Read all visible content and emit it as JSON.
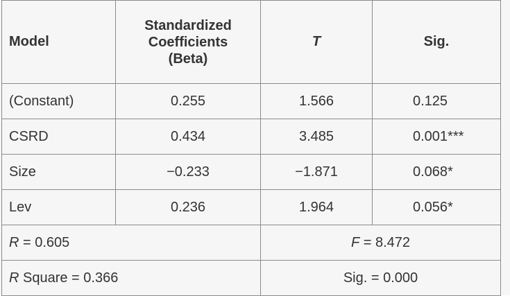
{
  "table": {
    "headers": [
      "Model",
      [
        "Standardized",
        "Coefficients",
        "(Beta)"
      ],
      "T",
      "Sig."
    ],
    "rows": [
      [
        "(Constant)",
        "0.255",
        "1.566",
        "0.125"
      ],
      [
        "CSRD",
        "0.434",
        "3.485",
        "0.001***"
      ],
      [
        "Size",
        "−0.233",
        "−1.871",
        "0.068*"
      ],
      [
        "Lev",
        "0.236",
        "1.964",
        "0.056*"
      ]
    ],
    "footer": [
      [
        [
          "R",
          " = 0.605"
        ],
        [
          "F",
          " = 8.472"
        ]
      ],
      [
        [
          "R",
          " Square = 0.366"
        ],
        [
          "",
          "Sig. = 0.000"
        ]
      ]
    ]
  }
}
